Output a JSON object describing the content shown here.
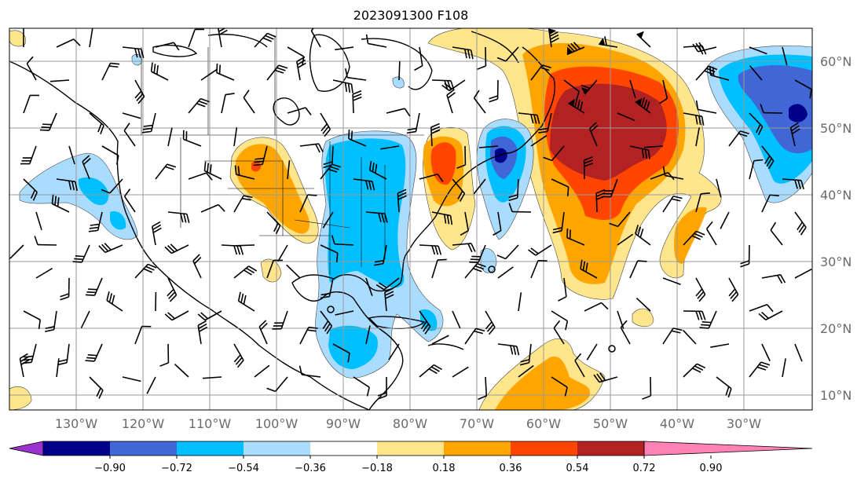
{
  "title": "2023091300 F108",
  "map": {
    "lon_labels": [
      "130°W",
      "120°W",
      "110°W",
      "100°W",
      "90°W",
      "80°W",
      "70°W",
      "60°W",
      "50°W",
      "40°W",
      "30°W"
    ],
    "lat_labels": [
      "60°N",
      "50°N",
      "40°N",
      "30°N",
      "20°N",
      "10°N"
    ],
    "fill_colors": {
      "red_dark": "#b22222",
      "red": "#ff4500",
      "orange": "#ffa500",
      "yellow": "#ffe68c",
      "blue_light": "#aadcff",
      "blue": "#00bfff",
      "blue_mid": "#4166d5",
      "blue_dark": "#00008b"
    }
  },
  "colorbar": {
    "ticks": [
      "−0.90",
      "−0.72",
      "−0.54",
      "−0.36",
      "−0.18",
      "0.18",
      "0.36",
      "0.54",
      "0.72",
      "0.90"
    ],
    "under_color": "#9933cc",
    "over_color": "#ff82b4",
    "colors": [
      "#00008b",
      "#4166d5",
      "#00bfff",
      "#aadcff",
      "#ffffff",
      "#ffe68c",
      "#ffa500",
      "#ff4500",
      "#b22222"
    ]
  }
}
